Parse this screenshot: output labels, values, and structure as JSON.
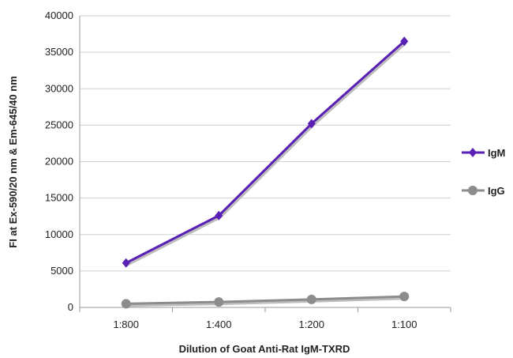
{
  "chart_data": {
    "type": "line",
    "title": "",
    "xlabel": "Dilution of Goat Anti-Rat IgM-TXRD",
    "ylabel": "FI at Ex-590/20 nm & Em-645/40 nm",
    "categories": [
      "1:800",
      "1:400",
      "1:200",
      "1:100"
    ],
    "ylim": [
      0,
      40000
    ],
    "yticks": [
      0,
      5000,
      10000,
      15000,
      20000,
      25000,
      30000,
      35000,
      40000
    ],
    "grid": true,
    "legend_position": "right",
    "series": [
      {
        "name": "IgM",
        "values": [
          6100,
          12600,
          25200,
          36500
        ],
        "color": "#5a1fb4",
        "marker": "diamond"
      },
      {
        "name": "IgG",
        "values": [
          500,
          750,
          1100,
          1500
        ],
        "color": "#8c8c8c",
        "marker": "circle"
      }
    ]
  }
}
